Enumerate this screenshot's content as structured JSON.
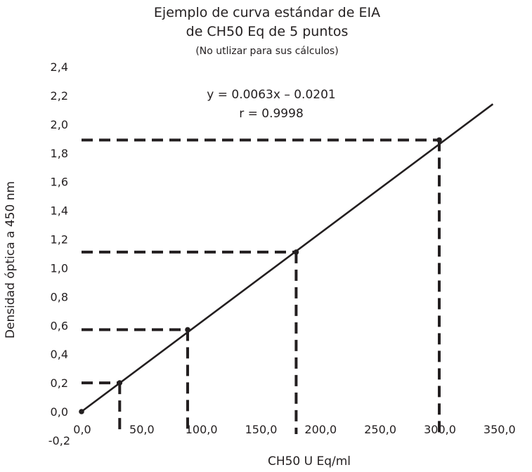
{
  "chart_data": {
    "type": "line",
    "title": "Ejemplo de curva estándar de EIA",
    "subtitle": "de CH50 Eq de 5 puntos",
    "note": "(No utlizar para sus cálculos)",
    "xlabel": "CH50 U Eq/ml",
    "ylabel": "Densidad óptica a 450 nm",
    "equation": "y = 0.0063x – 0.0201",
    "r_value": "r = 0.9998",
    "xlim": [
      0,
      350
    ],
    "ylim": [
      -0.2,
      2.4
    ],
    "x_ticks": [
      "0,0",
      "50,0",
      "100,0",
      "150,0",
      "200,0",
      "250,0",
      "300,0",
      "350,0"
    ],
    "y_ticks": [
      "-0,2",
      "0,0",
      "0,2",
      "0,4",
      "0,6",
      "0,8",
      "1,0",
      "1,2",
      "1,4",
      "1,6",
      "1,8",
      "2,0",
      "2,2",
      "2,4"
    ],
    "x_tick_values": [
      0,
      50,
      100,
      150,
      200,
      250,
      300,
      350
    ],
    "y_tick_values": [
      -0.2,
      0,
      0.2,
      0.4,
      0.6,
      0.8,
      1.0,
      1.2,
      1.4,
      1.6,
      1.8,
      2.0,
      2.2,
      2.4
    ],
    "series": [
      {
        "x": [
          0,
          32,
          89,
          180,
          300
        ],
        "y": [
          0.0,
          0.2,
          0.57,
          1.11,
          1.89
        ]
      }
    ],
    "fit_line": {
      "x": [
        0,
        345
      ],
      "y": [
        0.0,
        2.14
      ]
    },
    "colors": {
      "line": "#231f20",
      "dashes": "#231f20",
      "text": "#231f20"
    },
    "grid": false,
    "legend": "none"
  }
}
